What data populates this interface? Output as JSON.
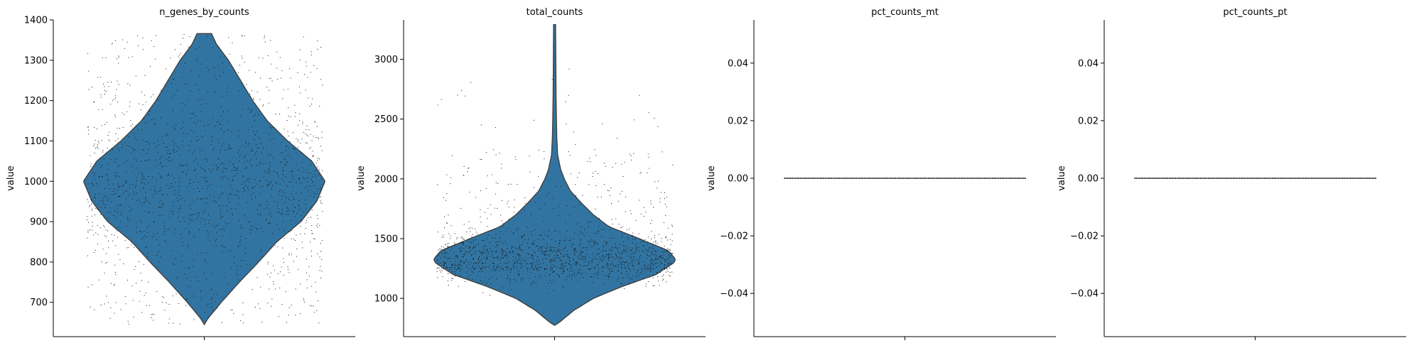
{
  "chart_data": [
    {
      "type": "violin",
      "title": "n_genes_by_counts",
      "ylabel": "value",
      "xlabel": "",
      "ylim": [
        615,
        1400
      ],
      "yticks": [
        700,
        800,
        900,
        1000,
        1100,
        1200,
        1300,
        1400
      ],
      "tick_labels": [
        "700",
        "800",
        "900",
        "1000",
        "1100",
        "1200",
        "1300",
        "1400"
      ],
      "fill_color": "#3274a1",
      "jitter": {
        "min": 645,
        "max": 1365,
        "count": 1600,
        "dist": "uniform"
      },
      "violin": {
        "y": [
          645,
          660,
          700,
          750,
          800,
          850,
          900,
          950,
          1000,
          1050,
          1100,
          1150,
          1200,
          1250,
          1300,
          1340,
          1366
        ],
        "half_width": [
          0.0,
          0.03,
          0.14,
          0.29,
          0.45,
          0.6,
          0.8,
          0.93,
          1.0,
          0.89,
          0.69,
          0.52,
          0.4,
          0.3,
          0.2,
          0.1,
          0.06
        ]
      }
    },
    {
      "type": "violin",
      "title": "total_counts",
      "ylabel": "value",
      "xlabel": "",
      "ylim": [
        680,
        3330
      ],
      "yticks": [
        1000,
        1500,
        2000,
        2500,
        3000
      ],
      "tick_labels": [
        "1000",
        "1500",
        "2000",
        "2500",
        "3000"
      ],
      "fill_color": "#3274a1",
      "jitter": {
        "min": 780,
        "max": 3000,
        "count": 1500,
        "dist": "skewed",
        "center": 1330
      },
      "violin": {
        "y": [
          775,
          800,
          900,
          1000,
          1100,
          1200,
          1300,
          1330,
          1400,
          1500,
          1600,
          1700,
          1800,
          1900,
          2000,
          2080,
          2200,
          2350,
          2500,
          2700,
          3000,
          3290
        ],
        "half_width": [
          0.0,
          0.04,
          0.16,
          0.32,
          0.56,
          0.84,
          0.99,
          1.0,
          0.94,
          0.7,
          0.45,
          0.32,
          0.22,
          0.13,
          0.08,
          0.05,
          0.025,
          0.018,
          0.015,
          0.012,
          0.01,
          0.008
        ]
      }
    },
    {
      "type": "violin",
      "title": "pct_counts_mt",
      "ylabel": "value",
      "xlabel": "",
      "ylim": [
        -0.055,
        0.055
      ],
      "yticks": [
        -0.04,
        -0.02,
        0.0,
        0.02,
        0.04
      ],
      "tick_labels": [
        "−0.04",
        "−0.02",
        "0.00",
        "0.02",
        "0.04"
      ],
      "fill_color": "#3274a1",
      "jitter": {
        "value": 0,
        "count": 0
      },
      "violin": null,
      "flat_value": 0
    },
    {
      "type": "violin",
      "title": "pct_counts_pt",
      "ylabel": "value",
      "xlabel": "",
      "ylim": [
        -0.055,
        0.055
      ],
      "yticks": [
        -0.04,
        -0.02,
        0.0,
        0.02,
        0.04
      ],
      "tick_labels": [
        "−0.04",
        "−0.02",
        "0.00",
        "0.02",
        "0.04"
      ],
      "fill_color": "#3274a1",
      "jitter": {
        "value": 0,
        "count": 0
      },
      "violin": null,
      "flat_value": 0
    }
  ]
}
